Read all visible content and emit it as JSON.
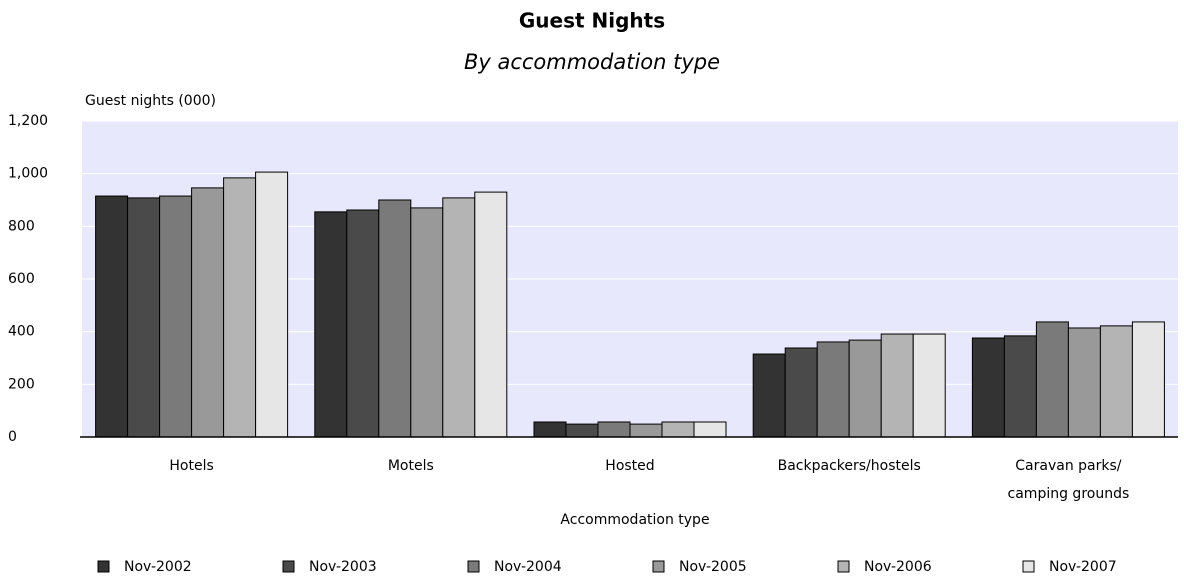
{
  "chart_data": {
    "type": "bar",
    "title": "Guest Nights",
    "subtitle": "By accommodation type",
    "y_label": "Guest nights (000)",
    "x_label": "Accommodation type",
    "categories": [
      "Hotels",
      "Motels",
      "Hosted",
      "Backpackers/hostels",
      "Caravan parks/\ncamping grounds"
    ],
    "series": [
      {
        "name": "Nov-2002",
        "color": "#333333",
        "values": [
          915,
          855,
          57,
          315,
          376
        ]
      },
      {
        "name": "Nov-2003",
        "color": "#4a4a4a",
        "values": [
          908,
          862,
          49,
          338,
          384
        ]
      },
      {
        "name": "Nov-2004",
        "color": "#7a7a7a",
        "values": [
          915,
          900,
          57,
          361,
          437
        ]
      },
      {
        "name": "Nov-2005",
        "color": "#999999",
        "values": [
          946,
          870,
          49,
          368,
          414
        ]
      },
      {
        "name": "Nov-2006",
        "color": "#b4b4b4",
        "values": [
          984,
          908,
          57,
          391,
          422
        ]
      },
      {
        "name": "Nov-2007",
        "color": "#e6e6e6",
        "values": [
          1006,
          930,
          57,
          391,
          437
        ]
      }
    ],
    "ylim": [
      0,
      1200
    ],
    "yticks": [
      0,
      200,
      400,
      600,
      800,
      {
        "value": 1000,
        "label": "1,000"
      },
      {
        "value": 1200,
        "label": "1,200"
      }
    ],
    "grid": true,
    "legend": "bottom"
  }
}
